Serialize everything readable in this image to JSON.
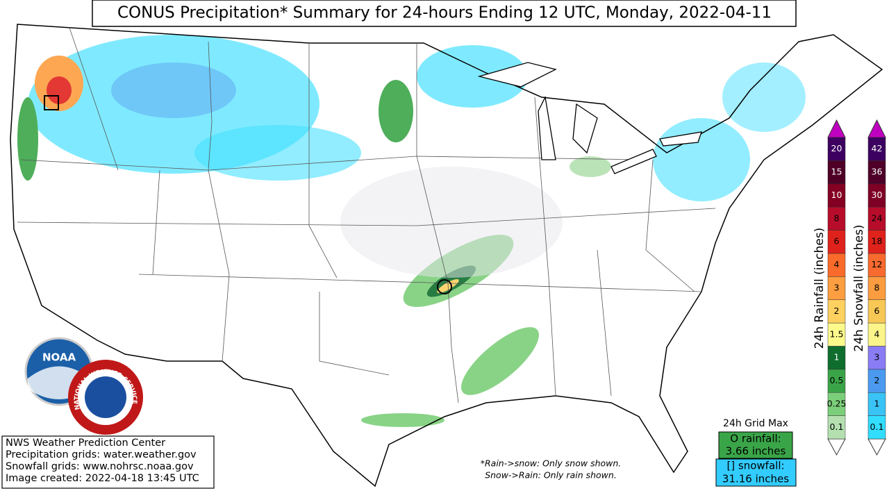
{
  "title": "CONUS Precipitation* Summary for 24-hours Ending 12 UTC, Monday, 2022-04-11",
  "credits": [
    "NWS Weather Prediction Center",
    "Precipitation grids: water.weather.gov",
    "Snowfall grids: www.nohrsc.noaa.gov",
    "Image created: 2022-04-18 13:45 UTC"
  ],
  "notes": [
    "*Rain->snow: Only snow shown.",
    "Snow->Rain: Only rain shown."
  ],
  "grid_max": {
    "title": "24h Grid Max",
    "rainfall_label": "O rainfall:",
    "rainfall_value": "3.66 inches",
    "snowfall_label": "[] snowfall:",
    "snowfall_value": "31.16 inches"
  },
  "rainfall_scale": {
    "title": "24h Rainfall (inches)",
    "labels": [
      "0.1",
      "0.25",
      "0.5",
      "1",
      "1.5",
      "2",
      "3",
      "4",
      "6",
      "8",
      "10",
      "15",
      "20"
    ],
    "colors": [
      "#b4e0b0",
      "#7ccf7a",
      "#3aa548",
      "#0f6e2d",
      "#fdfa8c",
      "#fed060",
      "#fd9e40",
      "#fa6a2a",
      "#e0221c",
      "#b70d2a",
      "#840022",
      "#4e0025",
      "#3d0060"
    ],
    "over_color": "#c000c0"
  },
  "snowfall_scale": {
    "title": "24h Snowfall (inches)",
    "labels": [
      "0.1",
      "1",
      "2",
      "3",
      "4",
      "6",
      "8",
      "12",
      "18",
      "24",
      "30",
      "36",
      "42"
    ],
    "colors": [
      "#33ddff",
      "#3ac3f5",
      "#4b9af0",
      "#8a7cf4",
      "#fbf58a",
      "#f8c856",
      "#fb9c40",
      "#f86a2e",
      "#e0221c",
      "#b70d2a",
      "#7e0025",
      "#4e0028",
      "#3c0060"
    ],
    "over_color": "#c000c0"
  },
  "logos": {
    "noaa": "NOAA",
    "nws": "NATIONAL WEATHER SERVICE"
  }
}
